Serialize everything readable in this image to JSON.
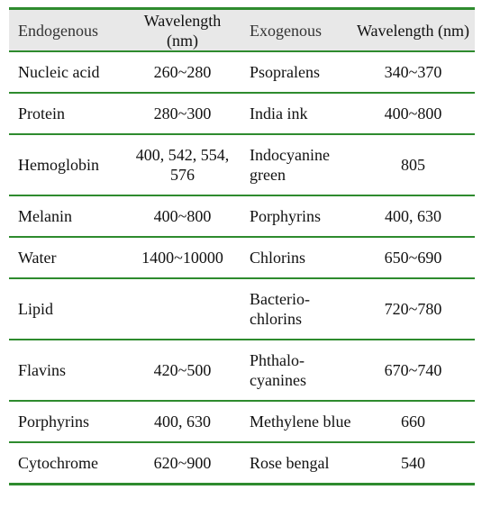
{
  "table": {
    "header": [
      "Endogenous",
      "Wavelength (nm)",
      "Exogenous",
      "Wavelength (nm)"
    ],
    "rows": [
      [
        "Nucleic acid",
        "260~280",
        "Psopralens",
        "340~370"
      ],
      [
        "Protein",
        "280~300",
        "India ink",
        "400~800"
      ],
      [
        "Hemoglobin",
        "400, 542, 554, 576",
        "Indocyanine green",
        "805"
      ],
      [
        "Melanin",
        "400~800",
        "Porphyrins",
        "400, 630"
      ],
      [
        "Water",
        "1400~10000",
        "Chlorins",
        "650~690"
      ],
      [
        "Lipid",
        null,
        "Bacterio-chlorins",
        "720~780"
      ],
      [
        "Flavins",
        "420~500",
        "Phthalo-cyanines",
        "670~740"
      ],
      [
        "Porphyrins",
        "400, 630",
        "Methylene blue",
        "660"
      ],
      [
        "Cytochrome",
        "620~900",
        "Rose bengal",
        "540"
      ]
    ]
  }
}
